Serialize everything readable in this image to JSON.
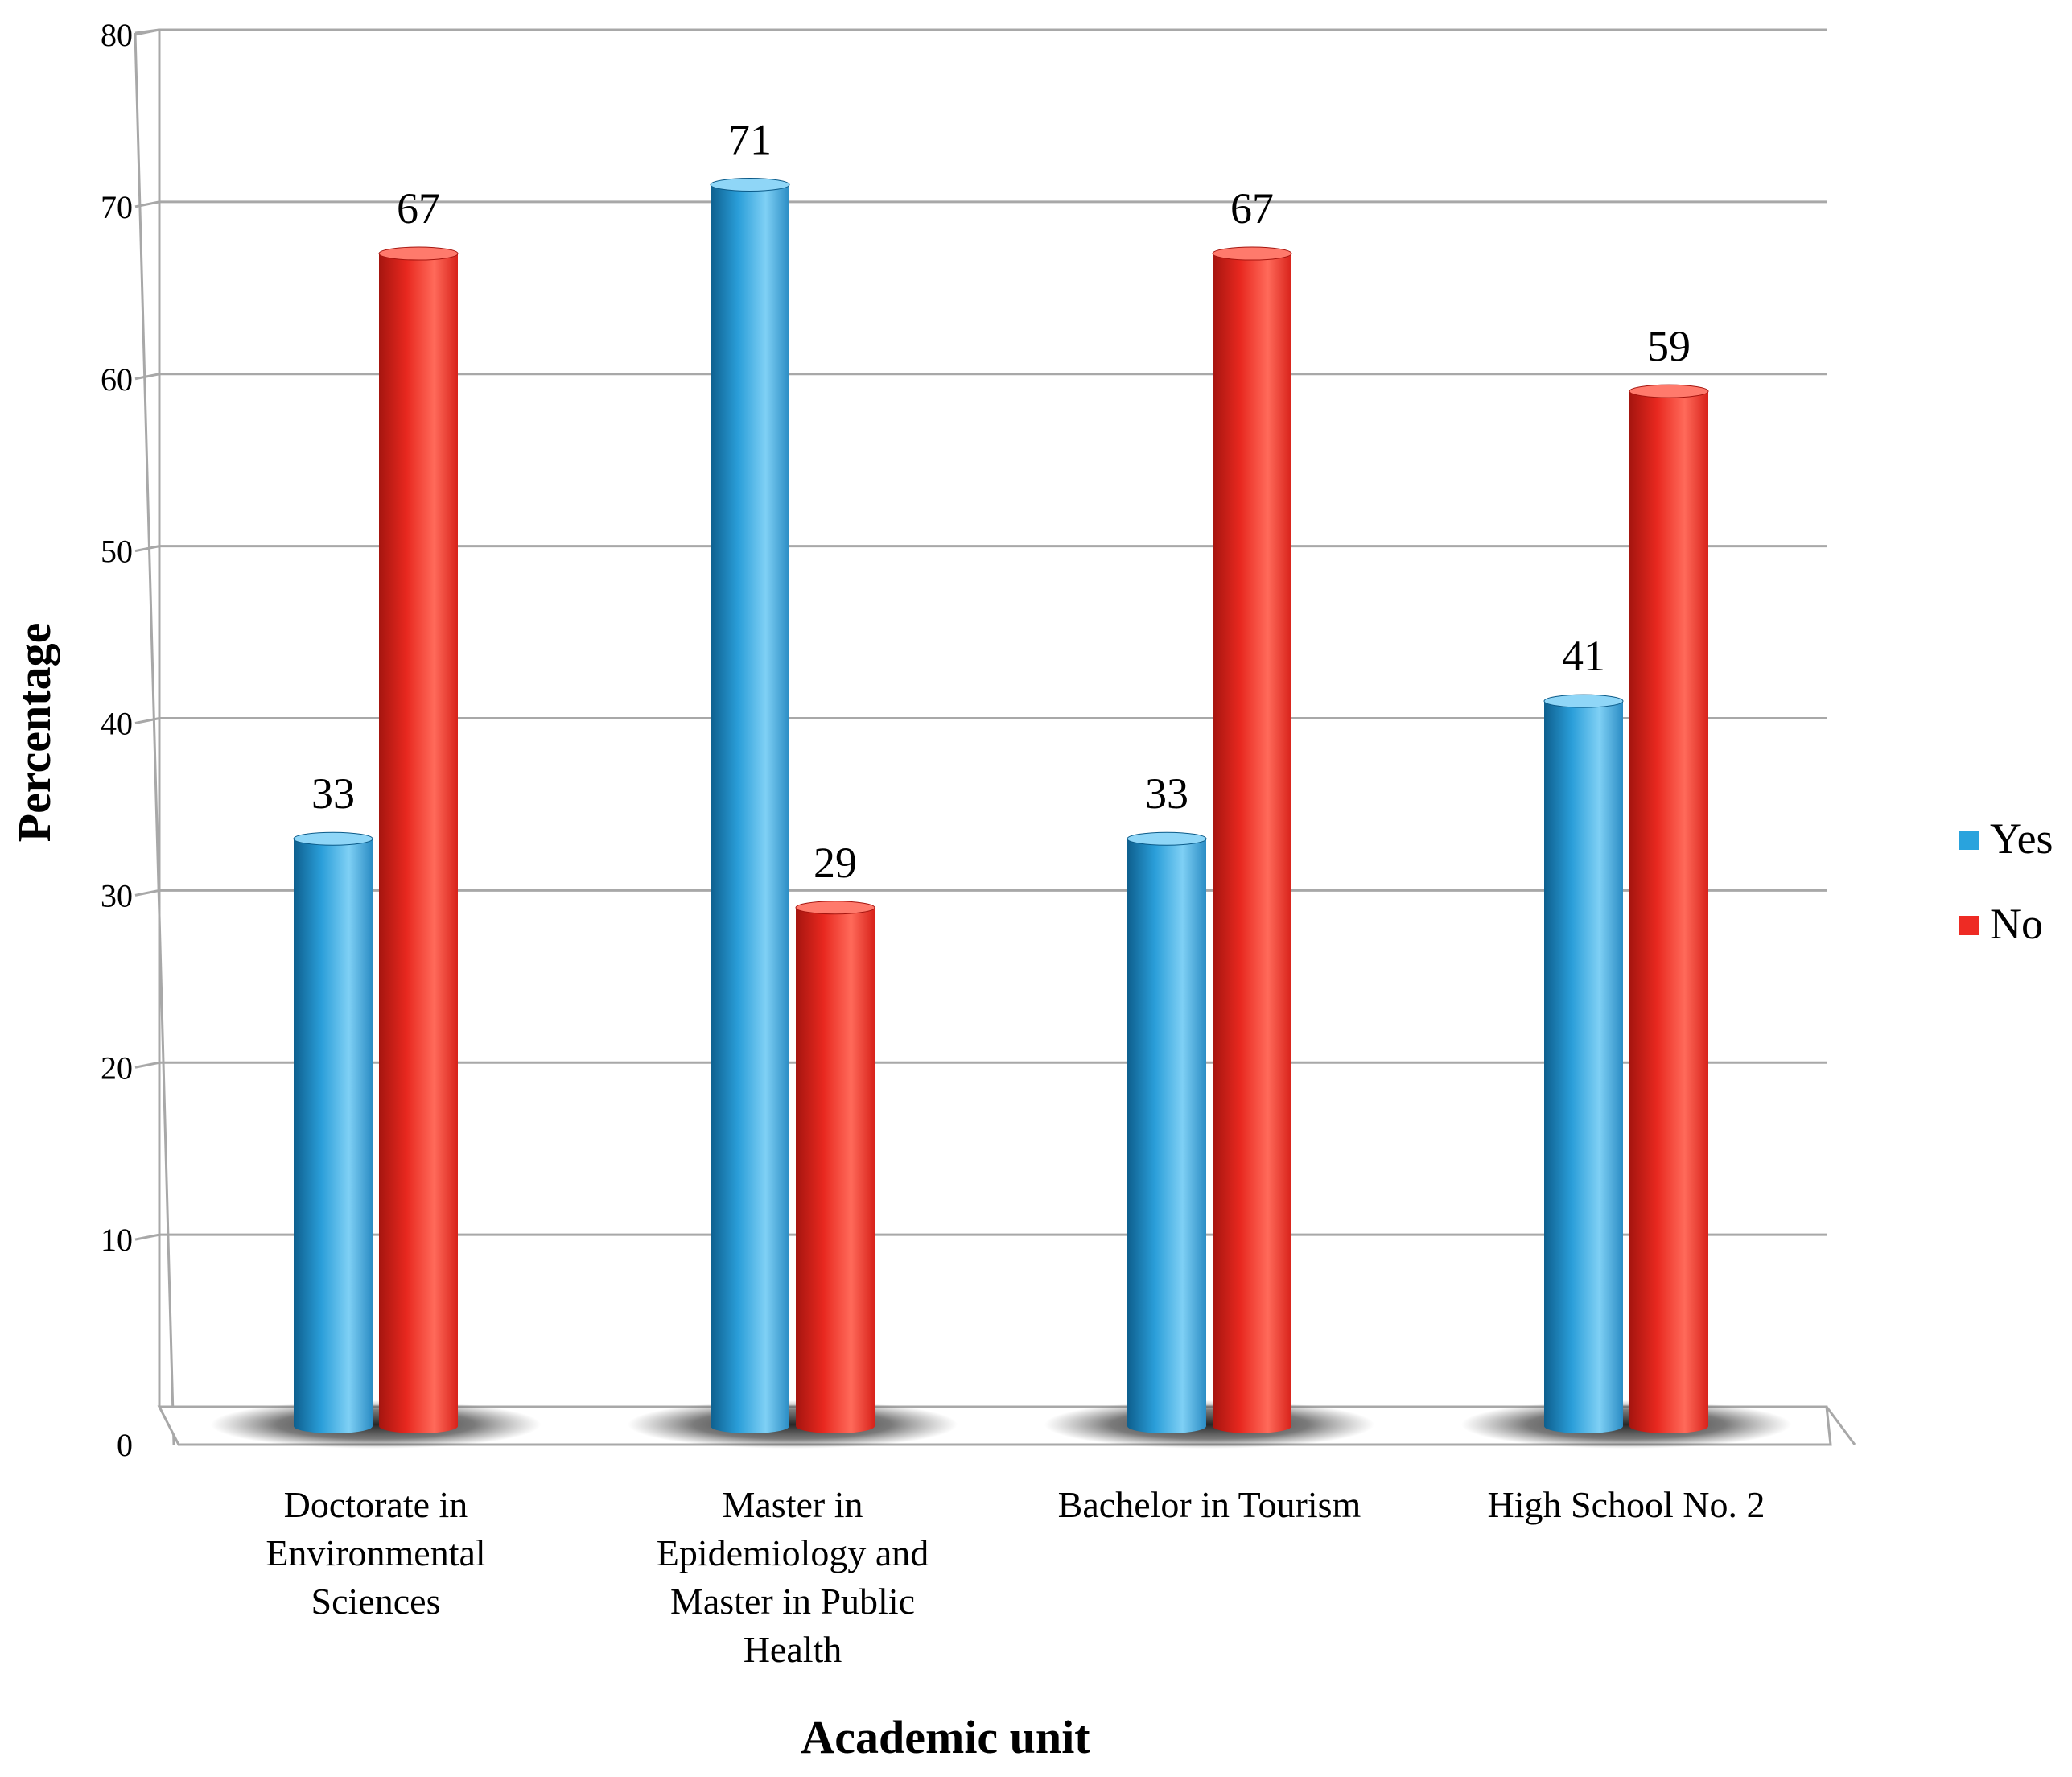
{
  "chart_data": {
    "type": "bar",
    "xlabel": "Academic unit",
    "ylabel": "Percentage",
    "ylim": [
      0,
      80
    ],
    "yticks": [
      0,
      10,
      20,
      30,
      40,
      50,
      60,
      70,
      80
    ],
    "grid": true,
    "legend_position": "right",
    "categories": [
      [
        "Doctorate in",
        "Environmental",
        "Sciences"
      ],
      [
        "Master in",
        "Epidemiology and",
        "Master in Public",
        "Health"
      ],
      [
        "Bachelor in Tourism"
      ],
      [
        "High School No. 2"
      ]
    ],
    "series": [
      {
        "name": "Yes",
        "values": [
          33,
          71,
          33,
          41
        ],
        "color": "#29a3dd"
      },
      {
        "name": "No",
        "values": [
          67,
          29,
          67,
          59
        ],
        "color": "#ee2b24"
      }
    ]
  }
}
